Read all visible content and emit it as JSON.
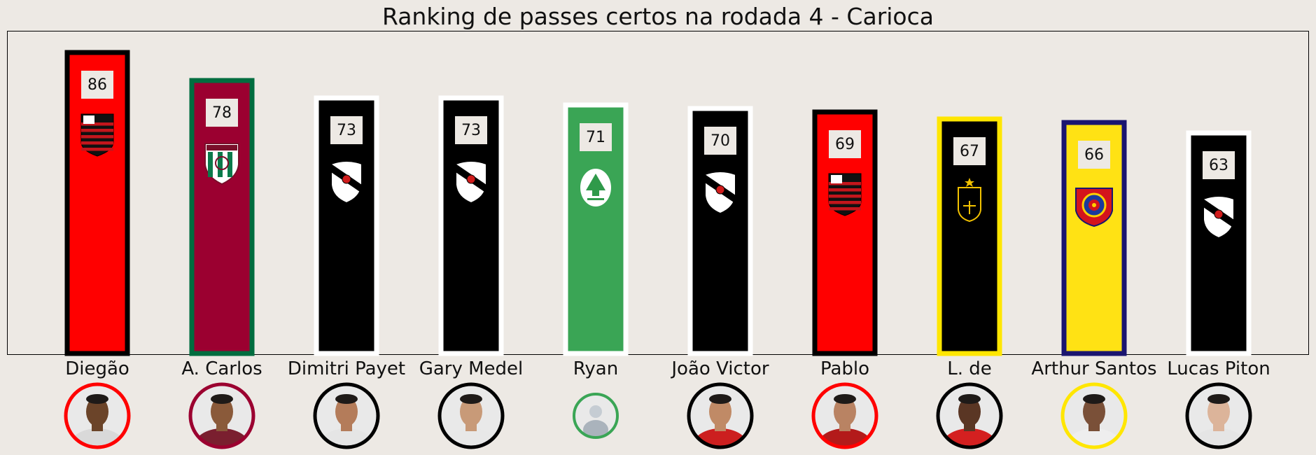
{
  "chart_data": {
    "type": "bar",
    "title": "Ranking de passes certos na rodada 4 - Carioca",
    "categories": [
      "Diegão",
      "A. Carlos",
      "Dimitri Payet",
      "Gary Medel",
      "Ryan",
      "João Victor",
      "Pablo",
      "L. de",
      "Arthur Santos",
      "Lucas Piton"
    ],
    "values": [
      86,
      78,
      73,
      73,
      71,
      70,
      69,
      67,
      66,
      63
    ],
    "ylim": [
      0,
      92
    ],
    "grid": false,
    "xlabel": "",
    "ylabel": "",
    "bars": [
      {
        "fill": "#ff0000",
        "edge": "#000000",
        "crest": "flamengo-crest-icon",
        "crest_color": "#c4161c"
      },
      {
        "fill": "#9b0030",
        "edge": "#006d3f",
        "crest": "fluminense-crest-icon",
        "crest_color": "#0b7a4b"
      },
      {
        "fill": "#000000",
        "edge": "#ffffff",
        "crest": "vasco-crest-icon",
        "crest_color": "#ffffff"
      },
      {
        "fill": "#000000",
        "edge": "#ffffff",
        "crest": "vasco-crest-icon",
        "crest_color": "#ffffff"
      },
      {
        "fill": "#3aa555",
        "edge": "#ffffff",
        "crest": "audax-crest-icon",
        "crest_color": "#2f9a4a"
      },
      {
        "fill": "#000000",
        "edge": "#ffffff",
        "crest": "vasco-crest-icon",
        "crest_color": "#ffffff"
      },
      {
        "fill": "#ff0000",
        "edge": "#000000",
        "crest": "flamengo-crest-icon",
        "crest_color": "#c4161c"
      },
      {
        "fill": "#000000",
        "edge": "#ffe600",
        "crest": "volta-redonda-crest-icon",
        "crest_color": "#f2c200"
      },
      {
        "fill": "#ffe214",
        "edge": "#1a1570",
        "crest": "madureira-crest-icon",
        "crest_color": "#1a3a9c"
      },
      {
        "fill": "#000000",
        "edge": "#ffffff",
        "crest": "vasco-crest-icon",
        "crest_color": "#ffffff"
      }
    ],
    "avatars": [
      {
        "ring": "#ff0000",
        "skin": "#6b4429",
        "shirt": "#d9d9d9"
      },
      {
        "ring": "#9b0030",
        "skin": "#8a5a3a",
        "shirt": "#7a1f2f"
      },
      {
        "ring": "#000000",
        "skin": "#b47c5a",
        "shirt": "#e5e5e5"
      },
      {
        "ring": "#000000",
        "skin": "#c89a78",
        "shirt": "#e8e8e8"
      },
      {
        "ring": "#3aa555",
        "skin": "#c5ccd3",
        "shirt": "#aab3bc"
      },
      {
        "ring": "#000000",
        "skin": "#c08a66",
        "shirt": "#cc1f1f"
      },
      {
        "ring": "#ff0000",
        "skin": "#b98363",
        "shirt": "#b31a1a"
      },
      {
        "ring": "#000000",
        "skin": "#5a3624",
        "shirt": "#d42020"
      },
      {
        "ring": "#ffe600",
        "skin": "#7a5038",
        "shirt": "#eeeeee"
      },
      {
        "ring": "#000000",
        "skin": "#dcb49a",
        "shirt": "#e5e5e5"
      }
    ]
  }
}
